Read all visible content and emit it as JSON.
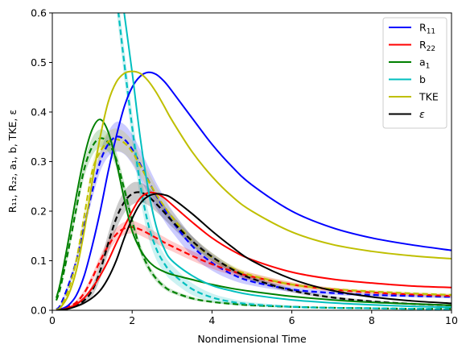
{
  "chart_data": {
    "type": "line",
    "xlabel": "Nondimensional Time",
    "ylabel": "R₁₁, R₂₂, a₁, b, TKE, ε",
    "xlim": [
      0,
      10
    ],
    "ylim": [
      0,
      0.6
    ],
    "x_ticks": [
      0,
      2,
      4,
      6,
      8,
      10
    ],
    "y_ticks": [
      0.0,
      0.1,
      0.2,
      0.3,
      0.4,
      0.5,
      0.6
    ],
    "x_tick_labels": [
      "0",
      "2",
      "4",
      "6",
      "8",
      "10"
    ],
    "y_tick_labels": [
      "0.0",
      "0.1",
      "0.2",
      "0.3",
      "0.4",
      "0.5",
      "0.6"
    ],
    "grid": false,
    "legend_position": "top-right",
    "x": [
      0.1,
      0.2,
      0.4,
      0.6,
      0.8,
      1.0,
      1.2,
      1.4,
      1.6,
      1.8,
      2.0,
      2.2,
      2.4,
      2.6,
      2.8,
      3.0,
      3.5,
      4.0,
      4.5,
      5.0,
      6.0,
      7.0,
      8.0,
      9.0,
      10.0
    ],
    "series": [
      {
        "name": "R11",
        "label_main": "R",
        "label_sub": "11",
        "color": "#0000ff",
        "solid": [
          0.0005,
          0.002,
          0.01,
          0.03,
          0.07,
          0.13,
          0.2,
          0.28,
          0.35,
          0.41,
          0.45,
          0.472,
          0.48,
          0.476,
          0.462,
          0.442,
          0.388,
          0.335,
          0.29,
          0.253,
          0.2,
          0.167,
          0.146,
          0.132,
          0.121
        ],
        "dashed": [
          0.002,
          0.01,
          0.05,
          0.1,
          0.17,
          0.24,
          0.3,
          0.335,
          0.35,
          0.345,
          0.325,
          0.295,
          0.263,
          0.232,
          0.205,
          0.18,
          0.13,
          0.096,
          0.073,
          0.058,
          0.042,
          0.035,
          0.031,
          0.029,
          0.027
        ],
        "band": [
          0.001,
          0.002,
          0.005,
          0.008,
          0.01,
          0.015,
          0.02,
          0.025,
          0.03,
          0.03,
          0.03,
          0.03,
          0.028,
          0.026,
          0.024,
          0.022,
          0.02,
          0.016,
          0.012,
          0.008,
          0.005,
          0.004,
          0.003,
          0.003,
          0.003
        ]
      },
      {
        "name": "R22",
        "label_main": "R",
        "label_sub": "22",
        "color": "#ff0000",
        "solid": [
          0.0003,
          0.001,
          0.005,
          0.012,
          0.025,
          0.045,
          0.07,
          0.1,
          0.135,
          0.168,
          0.2,
          0.226,
          0.237,
          0.236,
          0.227,
          0.213,
          0.178,
          0.146,
          0.121,
          0.102,
          0.077,
          0.063,
          0.055,
          0.049,
          0.046
        ],
        "dashed": [
          0.0005,
          0.002,
          0.007,
          0.016,
          0.035,
          0.065,
          0.1,
          0.13,
          0.153,
          0.165,
          0.168,
          0.163,
          0.155,
          0.146,
          0.137,
          0.129,
          0.11,
          0.093,
          0.079,
          0.068,
          0.052,
          0.042,
          0.036,
          0.032,
          0.029
        ],
        "band": [
          0.001,
          0.001,
          0.002,
          0.004,
          0.006,
          0.008,
          0.01,
          0.012,
          0.013,
          0.013,
          0.013,
          0.012,
          0.012,
          0.011,
          0.011,
          0.01,
          0.01,
          0.009,
          0.008,
          0.007,
          0.005,
          0.004,
          0.003,
          0.003,
          0.003
        ]
      },
      {
        "name": "a1",
        "label_main": "a",
        "label_sub": "1",
        "color": "#008000",
        "solid": [
          0.025,
          0.055,
          0.14,
          0.23,
          0.31,
          0.365,
          0.385,
          0.36,
          0.3,
          0.225,
          0.16,
          0.123,
          0.1,
          0.086,
          0.078,
          0.072,
          0.062,
          0.052,
          0.044,
          0.038,
          0.028,
          0.021,
          0.016,
          0.013,
          0.01
        ],
        "dashed": [
          0.02,
          0.045,
          0.12,
          0.205,
          0.285,
          0.33,
          0.347,
          0.338,
          0.305,
          0.245,
          0.18,
          0.125,
          0.088,
          0.064,
          0.048,
          0.038,
          0.024,
          0.017,
          0.013,
          0.01,
          0.007,
          0.005,
          0.004,
          0.003,
          0.003
        ],
        "band": [
          0.002,
          0.004,
          0.008,
          0.012,
          0.016,
          0.018,
          0.018,
          0.018,
          0.016,
          0.014,
          0.012,
          0.01,
          0.008,
          0.006,
          0.005,
          0.004,
          0.003,
          0.002,
          0.002,
          0.001,
          0.001,
          0.001,
          0.001,
          0.001,
          0.001
        ]
      },
      {
        "name": "b",
        "label_main": "b",
        "label_sub": "",
        "color": "#00bfbf",
        "solid": [
          null,
          null,
          null,
          null,
          null,
          null,
          null,
          null,
          0.72,
          0.6,
          0.48,
          0.35,
          0.245,
          0.17,
          0.125,
          0.1,
          0.07,
          0.05,
          0.039,
          0.031,
          0.021,
          0.015,
          0.011,
          0.008,
          0.006
        ],
        "dashed": [
          null,
          null,
          null,
          null,
          null,
          null,
          null,
          0.78,
          0.64,
          0.5,
          0.37,
          0.255,
          0.175,
          0.125,
          0.095,
          0.075,
          0.043,
          0.026,
          0.017,
          0.012,
          0.007,
          0.005,
          0.004,
          0.003,
          0.002
        ],
        "band": [
          0,
          0,
          0,
          0,
          0,
          0,
          0,
          0.02,
          0.03,
          0.03,
          0.03,
          0.028,
          0.026,
          0.022,
          0.018,
          0.016,
          0.012,
          0.008,
          0.006,
          0.004,
          0.003,
          0.002,
          0.002,
          0.001,
          0.001
        ]
      },
      {
        "name": "TKE",
        "label_main": "TKE",
        "label_sub": "",
        "color": "#bfbf00",
        "solid": [
          0.001,
          0.005,
          0.03,
          0.08,
          0.16,
          0.26,
          0.35,
          0.42,
          0.46,
          0.478,
          0.482,
          0.478,
          0.463,
          0.44,
          0.412,
          0.383,
          0.32,
          0.27,
          0.23,
          0.2,
          0.158,
          0.133,
          0.119,
          0.11,
          0.104
        ],
        "dashed": [
          0.0015,
          0.006,
          0.04,
          0.1,
          0.19,
          0.28,
          0.32,
          0.34,
          0.345,
          0.338,
          0.32,
          0.292,
          0.262,
          0.234,
          0.21,
          0.188,
          0.14,
          0.107,
          0.085,
          0.07,
          0.052,
          0.043,
          0.038,
          0.034,
          0.031
        ],
        "band": [
          0.001,
          0.002,
          0.005,
          0.008,
          0.01,
          0.014,
          0.018,
          0.02,
          0.022,
          0.022,
          0.022,
          0.02,
          0.018,
          0.016,
          0.014,
          0.012,
          0.01,
          0.008,
          0.006,
          0.005,
          0.004,
          0.003,
          0.003,
          0.003,
          0.003
        ]
      },
      {
        "name": "ε",
        "label_main": "ε",
        "label_sub": "",
        "color": "#000000",
        "solid": [
          0.0002,
          0.001,
          0.003,
          0.008,
          0.015,
          0.025,
          0.04,
          0.065,
          0.1,
          0.145,
          0.185,
          0.215,
          0.23,
          0.235,
          0.233,
          0.226,
          0.195,
          0.16,
          0.128,
          0.1,
          0.063,
          0.04,
          0.027,
          0.019,
          0.014
        ],
        "dashed": [
          0.0003,
          0.001,
          0.004,
          0.01,
          0.02,
          0.04,
          0.08,
          0.135,
          0.185,
          0.218,
          0.235,
          0.238,
          0.23,
          0.215,
          0.198,
          0.18,
          0.14,
          0.108,
          0.083,
          0.064,
          0.04,
          0.026,
          0.018,
          0.013,
          0.01
        ],
        "band": [
          0,
          0.001,
          0.002,
          0.004,
          0.008,
          0.012,
          0.016,
          0.02,
          0.022,
          0.022,
          0.022,
          0.02,
          0.018,
          0.016,
          0.014,
          0.012,
          0.01,
          0.008,
          0.006,
          0.005,
          0.004,
          0.003,
          0.002,
          0.002,
          0.002
        ]
      }
    ]
  }
}
